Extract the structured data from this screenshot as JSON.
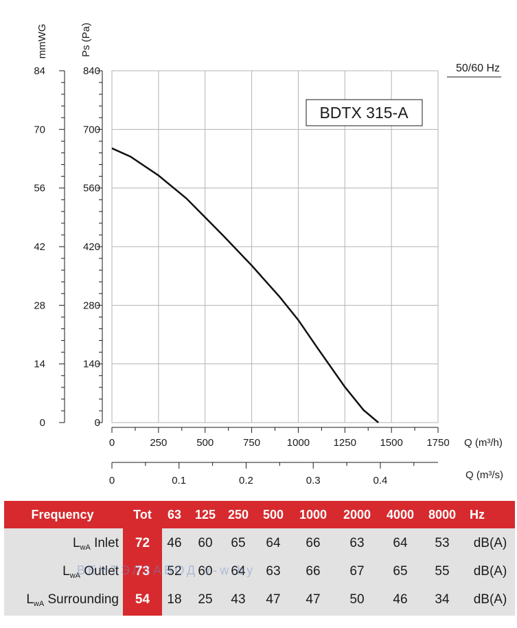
{
  "chart_data": {
    "type": "line",
    "title": "BDTX 315-A",
    "frequency_note": "50/60 Hz",
    "y_left_label": "mmWG",
    "y_right_label": "Ps (Pa)",
    "x_label": "Q (m³/h)",
    "x2_label": "Q (m³/s)",
    "y_left_ticks": [
      "84",
      "70",
      "56",
      "42",
      "28",
      "14",
      "0"
    ],
    "y_ticks": [
      "840",
      "700",
      "560",
      "420",
      "280",
      "140",
      "0"
    ],
    "x_ticks": [
      "0",
      "250",
      "500",
      "750",
      "1000",
      "1250",
      "1500",
      "1750"
    ],
    "x2_ticks": [
      "0",
      "0.1",
      "0.2",
      "0.3",
      "0.4"
    ],
    "xlim": [
      0,
      1750
    ],
    "ylim": [
      0,
      840
    ],
    "x2lim": [
      0,
      0.486
    ],
    "grid": true,
    "series": [
      {
        "x": [
          0,
          100,
          250,
          400,
          500,
          600,
          750,
          900,
          1000,
          1100,
          1250,
          1350,
          1430
        ],
        "y": [
          655,
          635,
          590,
          535,
          490,
          445,
          375,
          300,
          245,
          180,
          85,
          30,
          0
        ]
      }
    ]
  },
  "table": {
    "header": {
      "label": "Frequency",
      "tot": "Tot",
      "bands": [
        "63",
        "125",
        "250",
        "500",
        "1000",
        "2000",
        "4000",
        "8000"
      ],
      "unit": "Hz"
    },
    "rows": [
      {
        "prefix": "L",
        "sub": "wA",
        "name": "Inlet",
        "tot": "72",
        "values": [
          "46",
          "60",
          "65",
          "64",
          "66",
          "63",
          "64",
          "53"
        ],
        "unit": "dB(A)"
      },
      {
        "prefix": "L",
        "sub": "wA",
        "name": "Outlet",
        "tot": "73",
        "values": [
          "52",
          "60",
          "64",
          "63",
          "66",
          "67",
          "65",
          "55"
        ],
        "unit": "dB(A)"
      },
      {
        "prefix": "L",
        "sub": "wA",
        "name": "Surrounding",
        "tot": "54",
        "values": [
          "18",
          "25",
          "43",
          "47",
          "47",
          "50",
          "46",
          "34"
        ],
        "unit": "dB(A)"
      }
    ]
  },
  "watermark": "ВЕНТЭЛЗАВОД v-w.by",
  "colors": {
    "header_red": "#d62a2e",
    "row_gray": "#e2e2e2",
    "curve": "#111111",
    "grid": "#b3b3b3"
  }
}
